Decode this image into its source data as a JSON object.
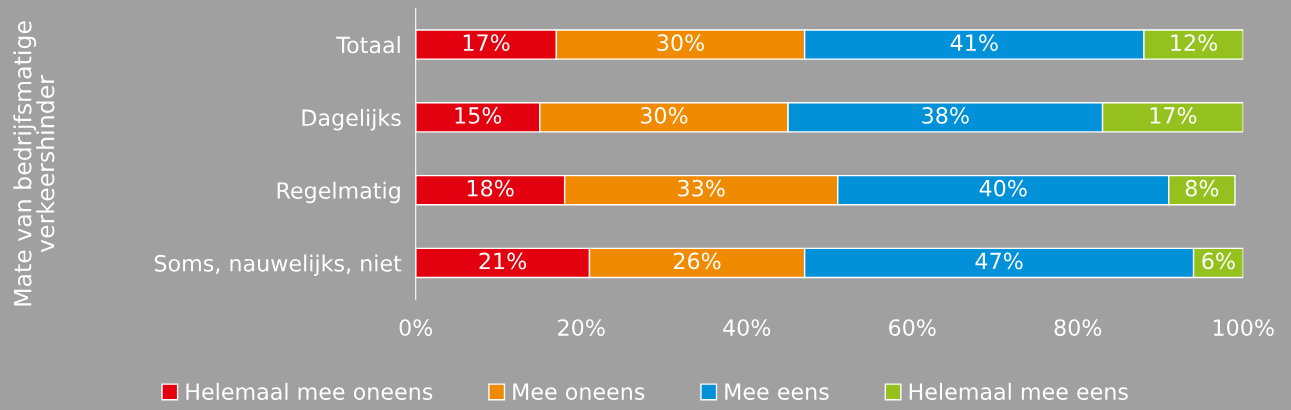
{
  "chart_data": {
    "type": "bar",
    "orientation": "horizontal",
    "stacked": true,
    "ylabel": "Mate van bedrijfsmatige\nverkeershinder",
    "categories": [
      "Totaal",
      "Dagelijks",
      "Regelmatig",
      "Soms, nauwelijks, niet"
    ],
    "series": [
      {
        "name": "Helemaal mee oneens",
        "color": "#e3000f",
        "values": [
          17,
          15,
          18,
          21
        ],
        "value_labels": [
          "17%",
          "15%",
          "18%",
          "21%"
        ]
      },
      {
        "name": "Mee oneens",
        "color": "#f08a00",
        "values": [
          30,
          30,
          33,
          26
        ],
        "value_labels": [
          "30%",
          "30%",
          "33%",
          "26%"
        ]
      },
      {
        "name": "Mee eens",
        "color": "#0091d9",
        "values": [
          41,
          38,
          40,
          47
        ],
        "value_labels": [
          "41%",
          "38%",
          "40%",
          "47%"
        ]
      },
      {
        "name": "Helemaal mee eens",
        "color": "#95c11f",
        "values": [
          12,
          17,
          8,
          6
        ],
        "value_labels": [
          "12%",
          "17%",
          "8%",
          "6%"
        ]
      }
    ],
    "xlim": [
      0,
      100
    ],
    "xticks": [
      {
        "value": 0,
        "label": "0%"
      },
      {
        "value": 20,
        "label": "20%"
      },
      {
        "value": 40,
        "label": "40%"
      },
      {
        "value": 60,
        "label": "60%"
      },
      {
        "value": 80,
        "label": "80%"
      },
      {
        "value": 100,
        "label": "100%"
      }
    ],
    "grid": false,
    "legend": "bottom"
  }
}
